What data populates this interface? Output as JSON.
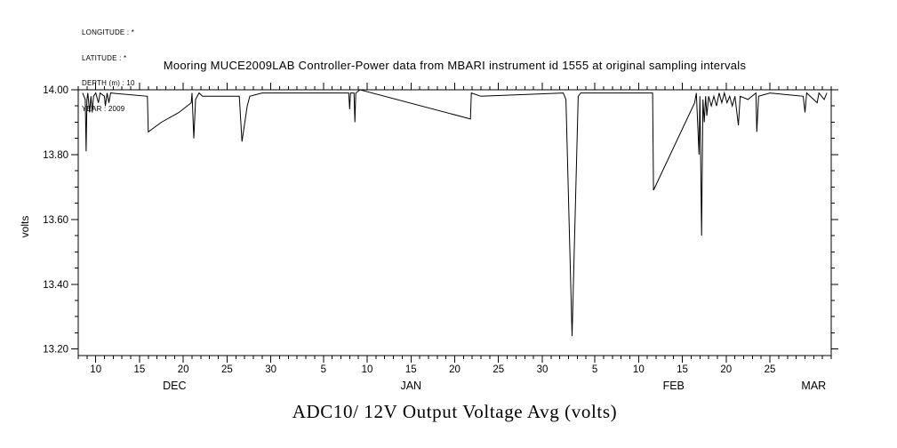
{
  "header": {
    "longitude": "LONGITUDE : *",
    "latitude": "LATITUDE : *",
    "depth": "DEPTH (m) : 10",
    "year": "YEAR : 2009"
  },
  "title": "Mooring MUCE2009LAB Controller-Power data from MBARI instrument id 1555 at original sampling intervals",
  "chart_data": {
    "type": "line",
    "title": "Mooring MUCE2009LAB Controller-Power data from MBARI instrument id 1555 at original sampling intervals",
    "bottom_title": "ADC10/ 12V Output Voltage Avg (volts)",
    "ylabel": "volts",
    "x_unit": "days since 8 Dec",
    "xlim": [
      0,
      86
    ],
    "ylim": [
      13.18,
      14.0
    ],
    "grid": false,
    "legend": "none",
    "y_ticks": [
      {
        "value": 14.0,
        "label": "14.00"
      },
      {
        "value": 13.8,
        "label": "13.80"
      },
      {
        "value": 13.6,
        "label": "13.60"
      },
      {
        "value": 13.4,
        "label": "13.40"
      },
      {
        "value": 13.2,
        "label": "13.20"
      }
    ],
    "y_minor_step": 0.05,
    "x_minor_step": 1,
    "x_ticks": [
      {
        "day": 2,
        "label": "10"
      },
      {
        "day": 7,
        "label": "15"
      },
      {
        "day": 12,
        "label": "20"
      },
      {
        "day": 17,
        "label": "25"
      },
      {
        "day": 22,
        "label": "30"
      },
      {
        "day": 28,
        "label": "5"
      },
      {
        "day": 33,
        "label": "10"
      },
      {
        "day": 38,
        "label": "15"
      },
      {
        "day": 43,
        "label": "20"
      },
      {
        "day": 48,
        "label": "25"
      },
      {
        "day": 53,
        "label": "30"
      },
      {
        "day": 59,
        "label": "5"
      },
      {
        "day": 64,
        "label": "10"
      },
      {
        "day": 69,
        "label": "15"
      },
      {
        "day": 74,
        "label": "20"
      },
      {
        "day": 79,
        "label": "25"
      }
    ],
    "month_labels": [
      {
        "day": 11,
        "label": "DEC"
      },
      {
        "day": 38,
        "label": "JAN"
      },
      {
        "day": 68,
        "label": "FEB"
      },
      {
        "day": 84,
        "label": "MAR"
      }
    ],
    "series": [
      {
        "name": "ADC10/ 12V Output Voltage Avg (volts)",
        "points": [
          [
            0.5,
            13.99
          ],
          [
            0.8,
            13.97
          ],
          [
            0.9,
            13.81
          ],
          [
            1.0,
            13.97
          ],
          [
            1.1,
            13.99
          ],
          [
            1.3,
            13.93
          ],
          [
            1.45,
            13.98
          ],
          [
            1.6,
            13.93
          ],
          [
            1.75,
            13.98
          ],
          [
            2.0,
            13.99
          ],
          [
            2.3,
            13.96
          ],
          [
            2.5,
            13.99
          ],
          [
            3.0,
            13.98
          ],
          [
            3.1,
            13.95
          ],
          [
            3.3,
            13.99
          ],
          [
            3.5,
            13.96
          ],
          [
            3.7,
            13.99
          ],
          [
            7.9,
            13.98
          ],
          [
            8.0,
            13.87
          ],
          [
            9.5,
            13.9
          ],
          [
            11.5,
            13.93
          ],
          [
            12.9,
            13.96
          ],
          [
            13.0,
            13.99
          ],
          [
            13.2,
            13.85
          ],
          [
            13.4,
            13.97
          ],
          [
            13.8,
            13.99
          ],
          [
            14.2,
            13.98
          ],
          [
            18.4,
            13.98
          ],
          [
            18.7,
            13.84
          ],
          [
            19.3,
            13.95
          ],
          [
            19.6,
            13.98
          ],
          [
            21.0,
            13.99
          ],
          [
            30.9,
            13.99
          ],
          [
            31.0,
            13.94
          ],
          [
            31.1,
            13.99
          ],
          [
            31.5,
            13.99
          ],
          [
            31.6,
            13.9
          ],
          [
            31.7,
            13.99
          ],
          [
            32.2,
            14.0
          ],
          [
            44.8,
            13.91
          ],
          [
            44.9,
            13.99
          ],
          [
            46.0,
            13.98
          ],
          [
            55.4,
            13.99
          ],
          [
            55.7,
            13.97
          ],
          [
            56.4,
            13.24
          ],
          [
            57.1,
            13.98
          ],
          [
            57.4,
            13.99
          ],
          [
            65.6,
            13.99
          ],
          [
            65.7,
            13.69
          ],
          [
            70.4,
            13.96
          ],
          [
            70.6,
            13.99
          ],
          [
            70.9,
            13.8
          ],
          [
            71.0,
            13.98
          ],
          [
            71.2,
            13.55
          ],
          [
            71.35,
            13.97
          ],
          [
            71.5,
            13.9
          ],
          [
            71.65,
            13.98
          ],
          [
            71.8,
            13.92
          ],
          [
            72.0,
            13.98
          ],
          [
            72.3,
            13.95
          ],
          [
            72.6,
            13.98
          ],
          [
            72.9,
            13.95
          ],
          [
            73.2,
            13.99
          ],
          [
            73.5,
            13.96
          ],
          [
            73.8,
            13.99
          ],
          [
            74.1,
            13.96
          ],
          [
            74.4,
            13.98
          ],
          [
            74.7,
            13.95
          ],
          [
            75.0,
            13.98
          ],
          [
            75.4,
            13.89
          ],
          [
            75.6,
            13.98
          ],
          [
            76.5,
            13.97
          ],
          [
            77.4,
            13.99
          ],
          [
            77.5,
            13.87
          ],
          [
            77.7,
            13.98
          ],
          [
            79.0,
            13.99
          ],
          [
            82.8,
            13.98
          ],
          [
            83.0,
            13.93
          ],
          [
            83.2,
            13.99
          ],
          [
            84.4,
            13.96
          ],
          [
            84.6,
            13.99
          ],
          [
            85.2,
            13.97
          ],
          [
            85.5,
            13.99
          ]
        ]
      }
    ]
  }
}
